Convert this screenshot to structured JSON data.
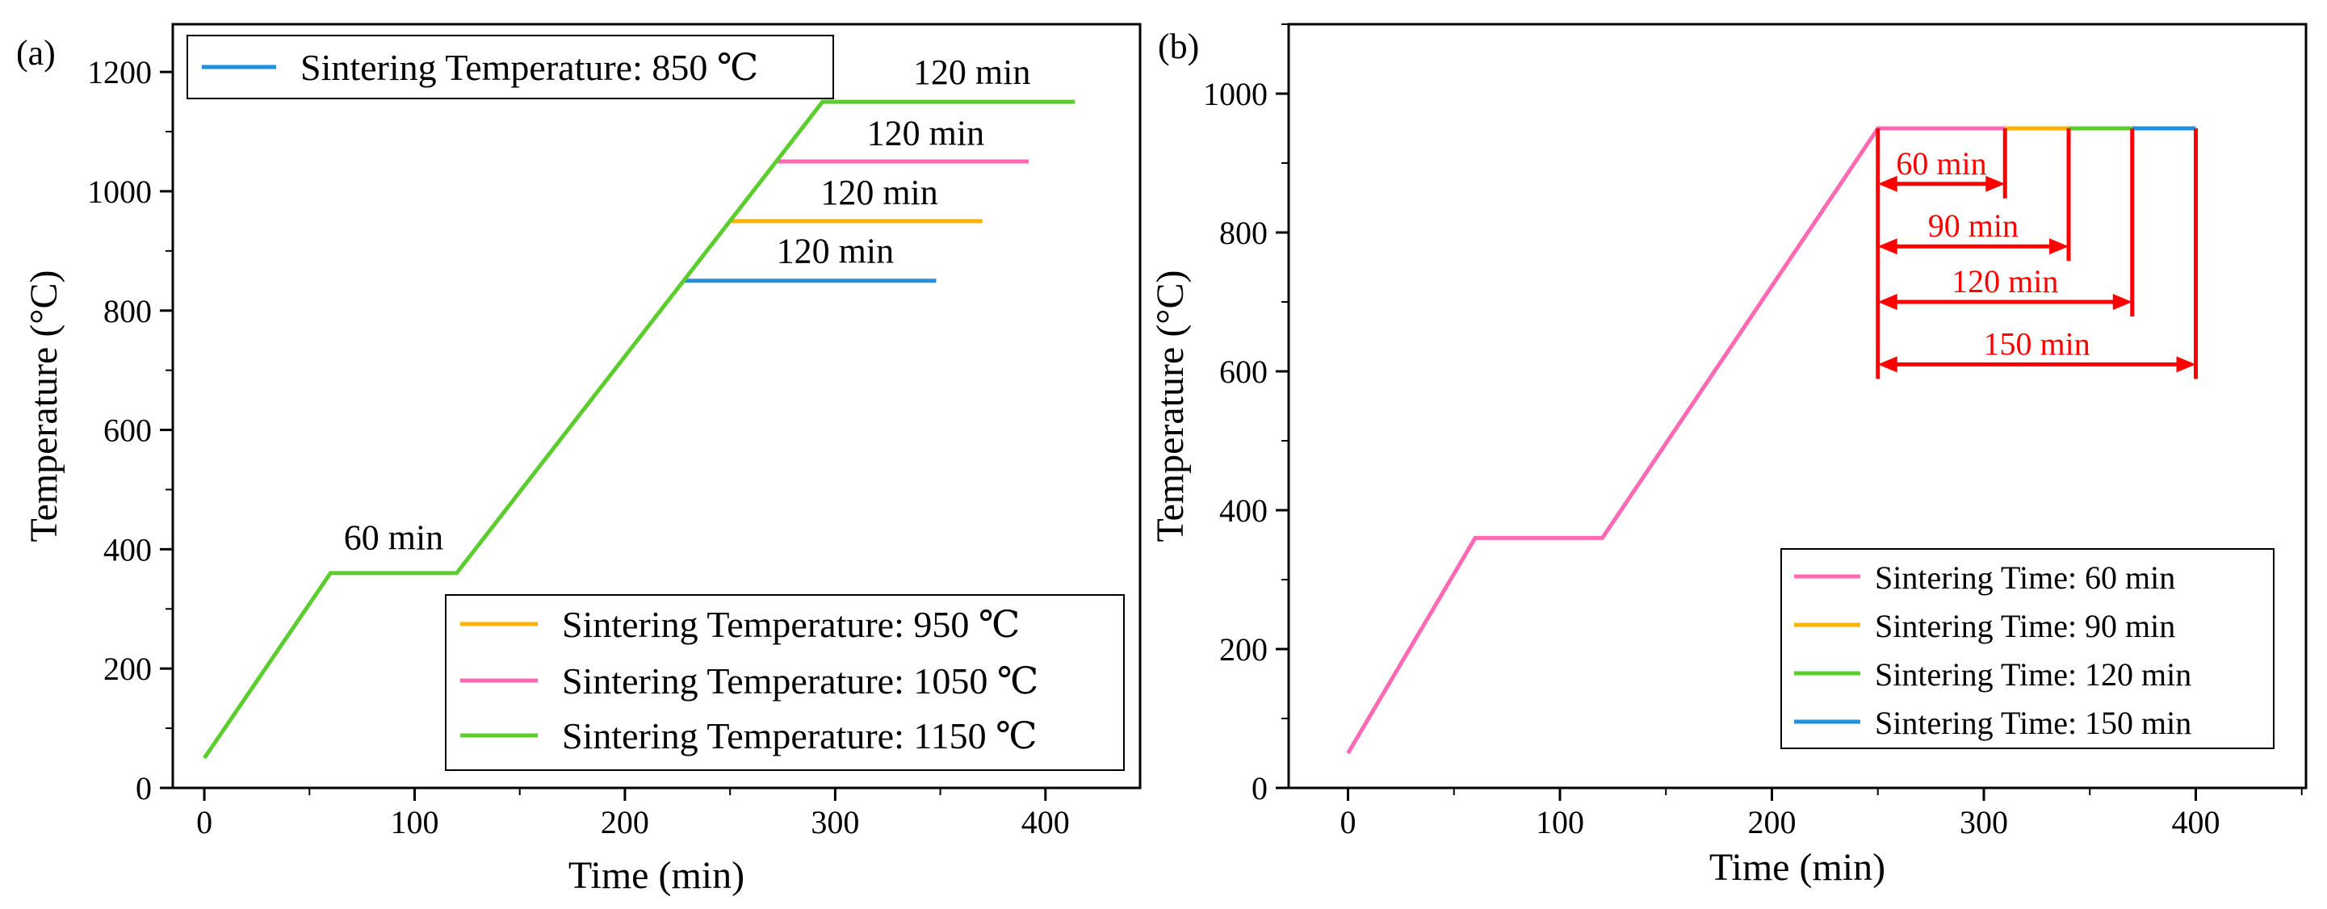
{
  "colors": {
    "blue": "#1f8fe0",
    "orange": "#ffb300",
    "pink": "#ff69b4",
    "green": "#5ccd2f",
    "red": "#ff0000"
  },
  "chart_data": [
    {
      "type": "line",
      "panel_label": "(a)",
      "xlabel": "Time (min)",
      "ylabel": "Temperature (°C)",
      "xlim": [
        -15,
        445
      ],
      "ylim": [
        0,
        1280
      ],
      "xticks": [
        0,
        100,
        200,
        300,
        400
      ],
      "yticks": [
        0,
        200,
        400,
        600,
        800,
        1000,
        1200
      ],
      "xtick_labels": [
        "0",
        "100",
        "200",
        "300",
        "400"
      ],
      "ytick_labels": [
        "0",
        "200",
        "400",
        "600",
        "800",
        "1000",
        "1200"
      ],
      "grid": false,
      "series": [
        {
          "name": "Sintering Temperature: 850 ℃",
          "color": "#1f8fe0",
          "x": [
            228,
            348
          ],
          "y": [
            850,
            850
          ]
        },
        {
          "name": "Sintering Temperature: 950 ℃",
          "color": "#ffb300",
          "x": [
            250,
            370
          ],
          "y": [
            950,
            950
          ]
        },
        {
          "name": "Sintering Temperature: 1050 ℃",
          "color": "#ff69b4",
          "x": [
            272,
            392
          ],
          "y": [
            1050,
            1050
          ]
        },
        {
          "name": "Sintering Temperature: 1150 ℃",
          "color": "#5ccd2f",
          "x": [
            0,
            60,
            120,
            294,
            414
          ],
          "y": [
            50,
            360,
            360,
            1150,
            1150
          ]
        }
      ],
      "legends": [
        {
          "placement": "top-left",
          "series_index": [
            0
          ]
        },
        {
          "placement": "bottom-right",
          "series_index": [
            1,
            2,
            3
          ]
        }
      ],
      "annotations": [
        {
          "text": "60 min",
          "x": 90,
          "y": 400
        },
        {
          "text": "120 min",
          "x": 300,
          "y": 880
        },
        {
          "text": "120 min",
          "x": 321,
          "y": 978
        },
        {
          "text": "120 min",
          "x": 343,
          "y": 1078
        },
        {
          "text": "120 min",
          "x": 365,
          "y": 1180
        }
      ]
    },
    {
      "type": "line",
      "panel_label": "(b)",
      "xlabel": "Time (min)",
      "ylabel": "Temperature (°C)",
      "xlim": [
        -28,
        452
      ],
      "ylim": [
        0,
        1100
      ],
      "xticks": [
        0,
        100,
        200,
        300,
        400
      ],
      "yticks": [
        0,
        200,
        400,
        600,
        800,
        1000
      ],
      "xtick_labels": [
        "0",
        "100",
        "200",
        "300",
        "400"
      ],
      "ytick_labels": [
        "0",
        "200",
        "400",
        "600",
        "800",
        "1000"
      ],
      "grid": false,
      "series": [
        {
          "name": "Sintering Time: 150 min",
          "color": "#1f8fe0",
          "x": [
            370,
            400
          ],
          "y": [
            950,
            950
          ]
        },
        {
          "name": "Sintering Time: 120 min",
          "color": "#5ccd2f",
          "x": [
            340,
            370
          ],
          "y": [
            950,
            950
          ]
        },
        {
          "name": "Sintering Time: 90 min",
          "color": "#ffb300",
          "x": [
            310,
            340
          ],
          "y": [
            950,
            950
          ]
        },
        {
          "name": "Sintering Time: 60 min",
          "color": "#ff69b4",
          "x": [
            0,
            60,
            120,
            250,
            310
          ],
          "y": [
            50,
            360,
            360,
            950,
            950
          ]
        }
      ],
      "legends": [
        {
          "placement": "bottom-right",
          "series_index": [
            3,
            2,
            1,
            0
          ]
        }
      ],
      "annotations": [
        {
          "text": "60 min",
          "x_start": 250,
          "x_end": 310,
          "y": 870
        },
        {
          "text": "90 min",
          "x_start": 250,
          "x_end": 340,
          "y": 780
        },
        {
          "text": "120 min",
          "x_start": 250,
          "x_end": 370,
          "y": 700
        },
        {
          "text": "150 min",
          "x_start": 250,
          "x_end": 400,
          "y": 610
        }
      ]
    }
  ]
}
